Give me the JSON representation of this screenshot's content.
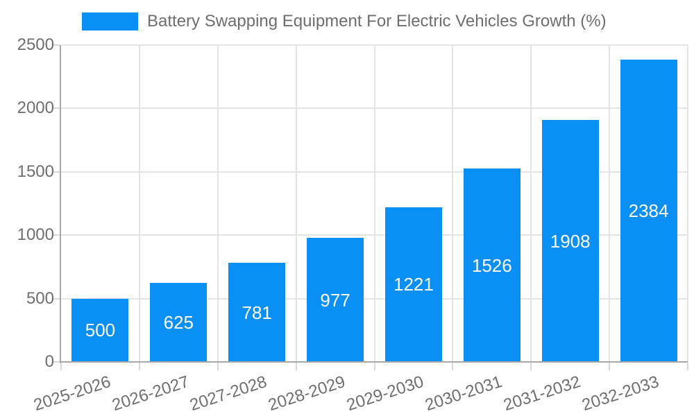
{
  "legend": {
    "series_label": "Battery Swapping Equipment For Electric Vehicles Growth (%)"
  },
  "chart_data": {
    "type": "bar",
    "title": "Battery Swapping Equipment For Electric Vehicles Growth (%)",
    "categories": [
      "2025-2026",
      "2026-2027",
      "2027-2028",
      "2028-2029",
      "2029-2030",
      "2030-2031",
      "2031-2032",
      "2032-2033"
    ],
    "values": [
      500,
      625,
      781,
      977,
      1221,
      1526,
      1908,
      2384
    ],
    "xlabel": "",
    "ylabel": "",
    "ylim": [
      0,
      2500
    ],
    "yticks": [
      0,
      500,
      1000,
      1500,
      2000,
      2500
    ],
    "grid": true,
    "legend_position": "top-left",
    "x_label_rotation_deg": -18,
    "colors": {
      "bar": "#0a90f5",
      "grid": "#e4e4e4",
      "axis": "#a8a8a8",
      "tick": "#d8d8d8",
      "axis_text": "#6e6e6e",
      "value_text": "#ffffff",
      "background": "#ffffff"
    }
  }
}
